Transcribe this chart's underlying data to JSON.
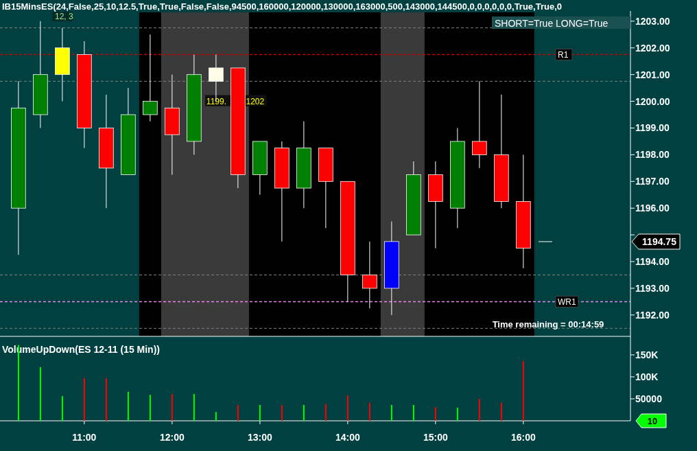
{
  "chart_data": [
    {
      "type": "candlestick",
      "title": "IB15MinsES(24,False,25,10,12.5,True,True,False,False,94500,160000,120000,130000,163000,500,143000,144500,0,0,0,0,0,0,True,True,0",
      "x": [
        10.25,
        10.5,
        10.75,
        11,
        11.25,
        11.5,
        11.75,
        12,
        12.25,
        12.5,
        12.75,
        13,
        13.25,
        13.5,
        13.75,
        14,
        14.25,
        14.5,
        14.75,
        15,
        15.25,
        15.5,
        15.75,
        16
      ],
      "ohlc": [
        [
          1196,
          1200.75,
          1194.25,
          1199.75
        ],
        [
          1199.5,
          1203,
          1199,
          1201
        ],
        [
          1201,
          1202.75,
          1200,
          1202
        ],
        [
          1201.75,
          1202.25,
          1198.25,
          1199
        ],
        [
          1199,
          1200.25,
          1196,
          1197.5
        ],
        [
          1197.25,
          1200.5,
          1197.25,
          1199.5
        ],
        [
          1199.5,
          1202.5,
          1199.25,
          1200
        ],
        [
          1199.75,
          1201,
          1197.25,
          1198.75
        ],
        [
          1198.5,
          1201.75,
          1198,
          1201
        ],
        [
          1200.75,
          1201.75,
          1200,
          1201.25
        ],
        [
          1201.25,
          1201.25,
          1196.75,
          1197.25
        ],
        [
          1197.25,
          1198.5,
          1196.5,
          1198.5
        ],
        [
          1198.25,
          1198.5,
          1194.75,
          1196.75
        ],
        [
          1196.75,
          1199.25,
          1196,
          1198.25
        ],
        [
          1198.25,
          1198.25,
          1195.25,
          1197
        ],
        [
          1197,
          1197,
          1192.5,
          1193.5
        ],
        [
          1193.5,
          1194.75,
          1192.25,
          1193
        ],
        [
          1193,
          1195.5,
          1192,
          1194.75
        ],
        [
          1195,
          1197.75,
          1195,
          1197.25
        ],
        [
          1197.25,
          1197.75,
          1194.5,
          1196.25
        ],
        [
          1196,
          1199,
          1195.25,
          1198.5
        ],
        [
          1198.5,
          1200.75,
          1197.5,
          1198
        ],
        [
          1198,
          1200.25,
          1196,
          1196.25
        ],
        [
          1196.25,
          1198,
          1193.75,
          1194.5
        ]
      ],
      "colors": [
        "#008000",
        "#008000",
        "#ffff00",
        "#ff0000",
        "#ff0000",
        "#008000",
        "#008000",
        "#ff0000",
        "#008000",
        "#fffde7",
        "#ff0000",
        "#008000",
        "#ff0000",
        "#008000",
        "#ff0000",
        "#ff0000",
        "#ff0000",
        "#0000ff",
        "#008000",
        "#ff0000",
        "#008000",
        "#ff0000",
        "#ff0000",
        "#ff0000"
      ],
      "xlim": [
        10.04,
        17.22
      ],
      "ylim": [
        1191.2,
        1203.33
      ],
      "yticks": [
        {
          "value": 1192,
          "label": "1192.00"
        },
        {
          "value": 1193,
          "label": "1193.00"
        },
        {
          "value": 1194,
          "label": "1194.00"
        },
        {
          "value": 1195,
          "label": null
        },
        {
          "value": 1196,
          "label": "1196.00"
        },
        {
          "value": 1197,
          "label": "1197.00"
        },
        {
          "value": 1198,
          "label": "1198.00"
        },
        {
          "value": 1199,
          "label": "1199.00"
        },
        {
          "value": 1200,
          "label": "1200.00"
        },
        {
          "value": 1201,
          "label": "1201.00"
        },
        {
          "value": 1202,
          "label": "1202.00"
        },
        {
          "value": 1203,
          "label": "1203.00"
        }
      ],
      "tick_labels": "y",
      "grid": false,
      "bands": [
        {
          "axis": "x",
          "from": 11.625,
          "to": 16.125,
          "color": "#000000"
        },
        {
          "axis": "x",
          "from": 11.875,
          "to": 12.875,
          "color": "#3a3a3a"
        },
        {
          "axis": "x",
          "from": 14.375,
          "to": 14.875,
          "color": "#3a3a3a"
        }
      ],
      "ref_lines": [
        {
          "axis": "y",
          "value": 1202.75,
          "color": "#808080",
          "line_style": "dashed"
        },
        {
          "axis": "y",
          "value": 1201.75,
          "label": "R1",
          "color": "#cc0000",
          "line_style": "dashed"
        },
        {
          "axis": "y",
          "value": 1200.75,
          "color": "#808080",
          "line_style": "dashed"
        },
        {
          "axis": "y",
          "value": 1193.5,
          "color": "#808080",
          "line_style": "dashed"
        },
        {
          "axis": "y",
          "value": 1192.5,
          "label": "WR1",
          "color": "#ee82ee",
          "line_style": "dashed"
        },
        {
          "axis": "y",
          "value": 1191.5,
          "color": "#808080",
          "line_style": "dashed"
        }
      ],
      "annotations": [
        "12, 3",
        {
          "text": "1199.",
          "x": 12.5,
          "y": 1200.0
        },
        {
          "text": "1202",
          "x": 12.95,
          "y": 1200.0
        },
        "SHORT=True LONG=True",
        "Time remaining = 00:14:59",
        "1194.75"
      ]
    },
    {
      "type": "bar",
      "title": "VolumeUpDown(ES 12-11 (15 Min))",
      "x": [
        10.25,
        10.5,
        10.75,
        11,
        11.25,
        11.5,
        11.75,
        12,
        12.25,
        12.5,
        12.75,
        13,
        13.25,
        13.5,
        13.75,
        14,
        14.25,
        14.5,
        14.75,
        15,
        15.25,
        15.5,
        15.75,
        16
      ],
      "values": [
        172000,
        122000,
        56000,
        97000,
        97000,
        66000,
        59000,
        61000,
        61000,
        20000,
        36000,
        36000,
        36000,
        36000,
        38000,
        58000,
        41000,
        36000,
        36000,
        31000,
        30000,
        50000,
        41000,
        136000
      ],
      "colors": [
        "#00ff00",
        "#00ff00",
        "#00ff00",
        "#ff0000",
        "#ff0000",
        "#00ff00",
        "#00ff00",
        "#ff0000",
        "#00ff00",
        "#00ff00",
        "#ff0000",
        "#00ff00",
        "#ff0000",
        "#00ff00",
        "#ff0000",
        "#ff0000",
        "#ff0000",
        "#00ff00",
        "#00ff00",
        "#ff0000",
        "#00ff00",
        "#ff0000",
        "#ff0000",
        "#ff0000"
      ],
      "xlim": [
        10.04,
        17.22
      ],
      "ylim": [
        0,
        189000
      ],
      "xticks": [
        {
          "value": 11,
          "label": "11:00"
        },
        {
          "value": 12,
          "label": "12:00"
        },
        {
          "value": 13,
          "label": "13:00"
        },
        {
          "value": 14,
          "label": "14:00"
        },
        {
          "value": 15,
          "label": "15:00"
        },
        {
          "value": 16,
          "label": "16:00"
        }
      ],
      "yticks": [
        50000,
        {
          "value": 100000,
          "label": "100K"
        },
        {
          "value": 150000,
          "label": "150K"
        }
      ],
      "grid": false,
      "annotations": [
        "10"
      ]
    }
  ]
}
